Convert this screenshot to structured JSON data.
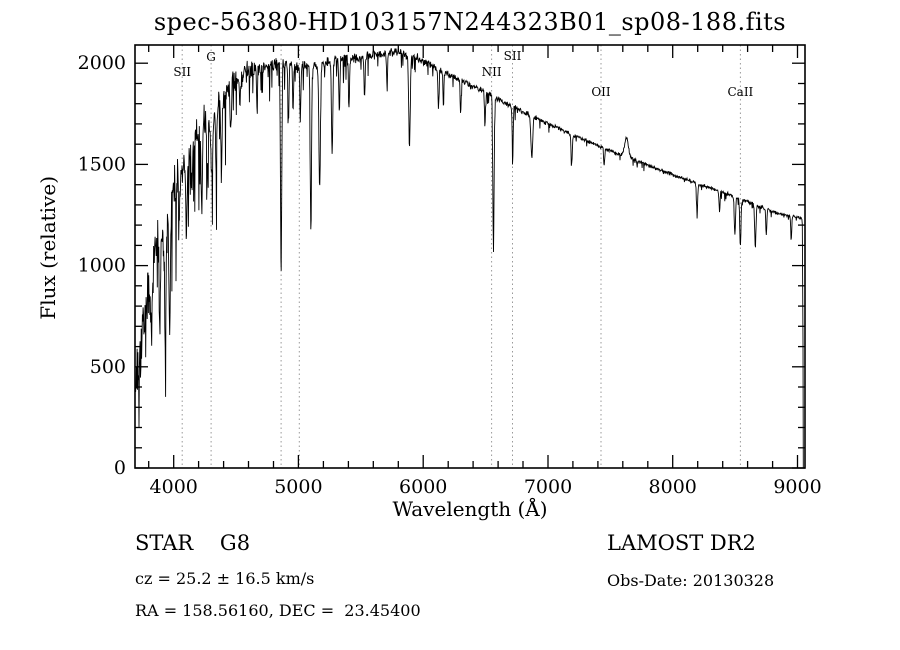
{
  "window": {
    "background": "#ffffff",
    "foreground": "#000000"
  },
  "chart_data": {
    "type": "line",
    "title": "spec-56380-HD103157N244323B01_sp08-188.fits",
    "xlabel": "Wavelength (Å)",
    "ylabel": "Flux (relative)",
    "xlim": [
      3690,
      9060
    ],
    "ylim": [
      0,
      2090
    ],
    "xticks": [
      4000,
      5000,
      6000,
      7000,
      8000,
      9000
    ],
    "yticks": [
      0,
      500,
      1000,
      1500,
      2000
    ],
    "x_minor_step": 200,
    "y_minor_step": 100,
    "grid": false,
    "legend": "none",
    "line_color": "#000000",
    "marker_line_color": "#999999",
    "spectral_lines": [
      {
        "label": "SII",
        "wavelength": 4068,
        "label_y": 76
      },
      {
        "label": "G",
        "wavelength": 4300,
        "label_y": 61
      },
      {
        "label": "",
        "wavelength": 4861,
        "label_y": 0
      },
      {
        "label": "",
        "wavelength": 5007,
        "label_y": 0
      },
      {
        "label": "NII",
        "wavelength": 6548,
        "label_y": 76
      },
      {
        "label": "SII",
        "wavelength": 6716,
        "label_y": 60
      },
      {
        "label": "OII",
        "wavelength": 7425,
        "label_y": 96
      },
      {
        "label": "CaII",
        "wavelength": 8542,
        "label_y": 96
      }
    ],
    "continuum": [
      [
        3695,
        430
      ],
      [
        3720,
        540
      ],
      [
        3750,
        690
      ],
      [
        3800,
        900
      ],
      [
        3850,
        1050
      ],
      [
        3900,
        1140
      ],
      [
        3950,
        1260
      ],
      [
        4000,
        1360
      ],
      [
        4050,
        1440
      ],
      [
        4100,
        1510
      ],
      [
        4150,
        1570
      ],
      [
        4200,
        1630
      ],
      [
        4250,
        1685
      ],
      [
        4300,
        1725
      ],
      [
        4350,
        1795
      ],
      [
        4400,
        1855
      ],
      [
        4500,
        1925
      ],
      [
        4600,
        1960
      ],
      [
        4700,
        1990
      ],
      [
        4800,
        2000
      ],
      [
        4900,
        1990
      ],
      [
        5000,
        1985
      ],
      [
        5100,
        1992
      ],
      [
        5200,
        2000
      ],
      [
        5300,
        2012
      ],
      [
        5400,
        2022
      ],
      [
        5500,
        2032
      ],
      [
        5600,
        2042
      ],
      [
        5700,
        2050
      ],
      [
        5800,
        2056
      ],
      [
        5900,
        2040
      ],
      [
        6000,
        2012
      ],
      [
        6100,
        1978
      ],
      [
        6200,
        1946
      ],
      [
        6300,
        1916
      ],
      [
        6400,
        1886
      ],
      [
        6500,
        1856
      ],
      [
        6600,
        1822
      ],
      [
        6700,
        1792
      ],
      [
        6800,
        1762
      ],
      [
        6900,
        1732
      ],
      [
        7000,
        1702
      ],
      [
        7100,
        1674
      ],
      [
        7200,
        1646
      ],
      [
        7300,
        1620
      ],
      [
        7400,
        1594
      ],
      [
        7500,
        1568
      ],
      [
        7600,
        1544
      ],
      [
        7700,
        1520
      ],
      [
        7800,
        1496
      ],
      [
        7900,
        1473
      ],
      [
        8000,
        1450
      ],
      [
        8100,
        1428
      ],
      [
        8200,
        1406
      ],
      [
        8300,
        1385
      ],
      [
        8400,
        1364
      ],
      [
        8500,
        1340
      ],
      [
        8600,
        1315
      ],
      [
        8700,
        1290
      ],
      [
        8800,
        1268
      ],
      [
        8900,
        1250
      ],
      [
        9000,
        1238
      ],
      [
        9040,
        1230
      ]
    ],
    "absorption_lines": [
      {
        "center": 3820,
        "width": 5,
        "depth": 300
      },
      {
        "center": 3889,
        "width": 5,
        "depth": 380
      },
      {
        "center": 3933,
        "width": 6,
        "depth": 620
      },
      {
        "center": 3968,
        "width": 6,
        "depth": 560
      },
      {
        "center": 4045,
        "width": 4,
        "depth": 260
      },
      {
        "center": 4101,
        "width": 5,
        "depth": 360
      },
      {
        "center": 4144,
        "width": 4,
        "depth": 220
      },
      {
        "center": 4226,
        "width": 5,
        "depth": 420
      },
      {
        "center": 4271,
        "width": 4,
        "depth": 260
      },
      {
        "center": 4305,
        "width": 8,
        "depth": 300
      },
      {
        "center": 4340,
        "width": 5,
        "depth": 330
      },
      {
        "center": 4383,
        "width": 5,
        "depth": 400
      },
      {
        "center": 4455,
        "width": 4,
        "depth": 220
      },
      {
        "center": 4531,
        "width": 4,
        "depth": 200
      },
      {
        "center": 4668,
        "width": 4,
        "depth": 220
      },
      {
        "center": 4861,
        "width": 5,
        "depth": 1020
      },
      {
        "center": 4920,
        "width": 4,
        "depth": 280
      },
      {
        "center": 4957,
        "width": 4,
        "depth": 220
      },
      {
        "center": 5015,
        "width": 4,
        "depth": 260
      },
      {
        "center": 5100,
        "width": 5,
        "depth": 840
      },
      {
        "center": 5170,
        "width": 6,
        "depth": 620
      },
      {
        "center": 5270,
        "width": 5,
        "depth": 480
      },
      {
        "center": 5328,
        "width": 4,
        "depth": 260
      },
      {
        "center": 5405,
        "width": 4,
        "depth": 240
      },
      {
        "center": 5530,
        "width": 4,
        "depth": 200
      },
      {
        "center": 5710,
        "width": 4,
        "depth": 180
      },
      {
        "center": 5890,
        "width": 6,
        "depth": 460
      },
      {
        "center": 6122,
        "width": 4,
        "depth": 200
      },
      {
        "center": 6162,
        "width": 4,
        "depth": 170
      },
      {
        "center": 6300,
        "width": 4,
        "depth": 150
      },
      {
        "center": 6495,
        "width": 4,
        "depth": 160
      },
      {
        "center": 6563,
        "width": 5,
        "depth": 760
      },
      {
        "center": 6717,
        "width": 4,
        "depth": 260
      },
      {
        "center": 6870,
        "width": 7,
        "depth": 210
      },
      {
        "center": 7190,
        "width": 5,
        "depth": 140
      },
      {
        "center": 7450,
        "width": 4,
        "depth": 90
      },
      {
        "center": 8195,
        "width": 5,
        "depth": 140
      },
      {
        "center": 8375,
        "width": 4,
        "depth": 110
      },
      {
        "center": 8498,
        "width": 5,
        "depth": 190
      },
      {
        "center": 8542,
        "width": 5,
        "depth": 230
      },
      {
        "center": 8662,
        "width": 5,
        "depth": 210
      },
      {
        "center": 8750,
        "width": 4,
        "depth": 130
      },
      {
        "center": 8950,
        "width": 4,
        "depth": 110
      }
    ],
    "emission_bumps": [
      {
        "center": 7630,
        "width": 15,
        "height": 95
      }
    ],
    "noise_profile": [
      [
        3695,
        260
      ],
      [
        3800,
        230
      ],
      [
        3900,
        200
      ],
      [
        4000,
        170
      ],
      [
        4100,
        150
      ],
      [
        4200,
        140
      ],
      [
        4300,
        120
      ],
      [
        4400,
        100
      ],
      [
        4500,
        80
      ],
      [
        4700,
        60
      ],
      [
        5000,
        45
      ],
      [
        5500,
        35
      ],
      [
        6000,
        28
      ],
      [
        6500,
        22
      ],
      [
        7000,
        16
      ],
      [
        7500,
        13
      ],
      [
        8000,
        12
      ],
      [
        8500,
        14
      ],
      [
        9000,
        10
      ]
    ],
    "noise_seed": 1337,
    "sample_step": 3,
    "sample_range": [
      3695,
      9040
    ],
    "end_drop": [
      [
        9044,
        620
      ],
      [
        9046,
        0
      ]
    ]
  },
  "footer": {
    "classification": "STAR    G8",
    "survey": "LAMOST DR2",
    "cz": "cz = 25.2 ± 16.5 km/s",
    "obs_date": "Obs-Date: 20130328",
    "ra_dec": "RA = 158.56160, DEC =  23.45400"
  }
}
